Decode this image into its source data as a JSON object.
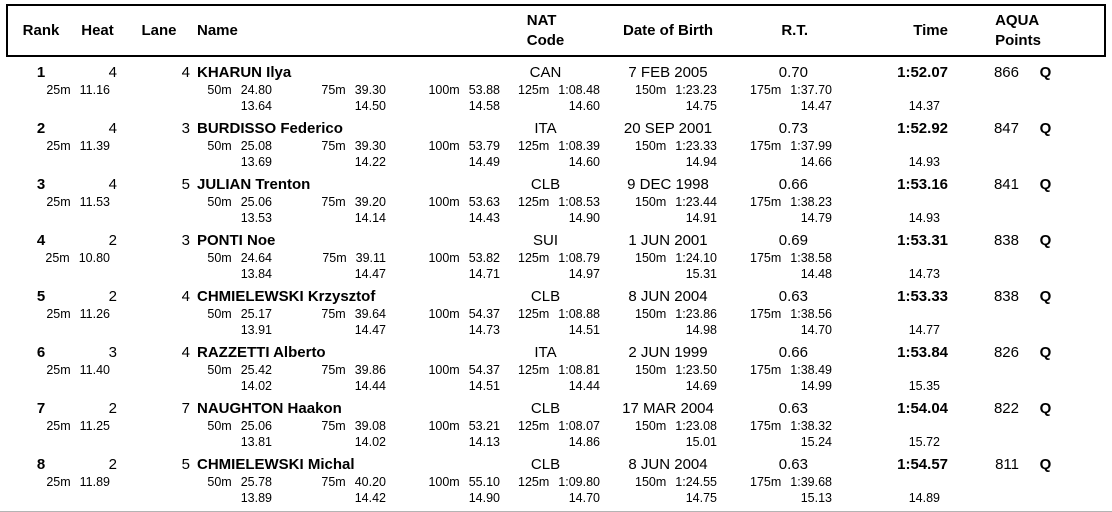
{
  "table": {
    "columns": {
      "rank": "Rank",
      "heat": "Heat",
      "lane": "Lane",
      "name": "Name",
      "nat_line1": "NAT",
      "nat_line2": "Code",
      "dob": "Date of Birth",
      "rt": "R.T.",
      "time": "Time",
      "points_line1": "AQUA",
      "points_line2": "Points"
    },
    "results": [
      {
        "rank": "1",
        "heat": "4",
        "lane": "4",
        "name": "KHARUN Ilya",
        "nat": "CAN",
        "dob": "7 FEB 2005",
        "rt": "0.70",
        "time": "1:52.07",
        "points": "866",
        "qualification": "Q",
        "splits": [
          {
            "dist": "25m",
            "time": "11.16"
          },
          {
            "dist": "50m",
            "time": "24.80",
            "lap": "13.64"
          },
          {
            "dist": "75m",
            "time": "39.30",
            "lap": "14.50"
          },
          {
            "dist": "100m",
            "time": "53.88",
            "lap": "14.58"
          },
          {
            "dist": "125m",
            "time": "1:08.48",
            "lap": "14.60"
          },
          {
            "dist": "150m",
            "time": "1:23.23",
            "lap": "14.75"
          },
          {
            "dist": "175m",
            "time": "1:37.70",
            "lap": "14.47"
          }
        ],
        "final_lap": "14.37"
      },
      {
        "rank": "2",
        "heat": "4",
        "lane": "3",
        "name": "BURDISSO Federico",
        "nat": "ITA",
        "dob": "20 SEP 2001",
        "rt": "0.73",
        "time": "1:52.92",
        "points": "847",
        "qualification": "Q",
        "splits": [
          {
            "dist": "25m",
            "time": "11.39"
          },
          {
            "dist": "50m",
            "time": "25.08",
            "lap": "13.69"
          },
          {
            "dist": "75m",
            "time": "39.30",
            "lap": "14.22"
          },
          {
            "dist": "100m",
            "time": "53.79",
            "lap": "14.49"
          },
          {
            "dist": "125m",
            "time": "1:08.39",
            "lap": "14.60"
          },
          {
            "dist": "150m",
            "time": "1:23.33",
            "lap": "14.94"
          },
          {
            "dist": "175m",
            "time": "1:37.99",
            "lap": "14.66"
          }
        ],
        "final_lap": "14.93"
      },
      {
        "rank": "3",
        "heat": "4",
        "lane": "5",
        "name": "JULIAN Trenton",
        "nat": "CLB",
        "dob": "9 DEC 1998",
        "rt": "0.66",
        "time": "1:53.16",
        "points": "841",
        "qualification": "Q",
        "splits": [
          {
            "dist": "25m",
            "time": "11.53"
          },
          {
            "dist": "50m",
            "time": "25.06",
            "lap": "13.53"
          },
          {
            "dist": "75m",
            "time": "39.20",
            "lap": "14.14"
          },
          {
            "dist": "100m",
            "time": "53.63",
            "lap": "14.43"
          },
          {
            "dist": "125m",
            "time": "1:08.53",
            "lap": "14.90"
          },
          {
            "dist": "150m",
            "time": "1:23.44",
            "lap": "14.91"
          },
          {
            "dist": "175m",
            "time": "1:38.23",
            "lap": "14.79"
          }
        ],
        "final_lap": "14.93"
      },
      {
        "rank": "4",
        "heat": "2",
        "lane": "3",
        "name": "PONTI Noe",
        "nat": "SUI",
        "dob": "1 JUN 2001",
        "rt": "0.69",
        "time": "1:53.31",
        "points": "838",
        "qualification": "Q",
        "splits": [
          {
            "dist": "25m",
            "time": "10.80"
          },
          {
            "dist": "50m",
            "time": "24.64",
            "lap": "13.84"
          },
          {
            "dist": "75m",
            "time": "39.11",
            "lap": "14.47"
          },
          {
            "dist": "100m",
            "time": "53.82",
            "lap": "14.71"
          },
          {
            "dist": "125m",
            "time": "1:08.79",
            "lap": "14.97"
          },
          {
            "dist": "150m",
            "time": "1:24.10",
            "lap": "15.31"
          },
          {
            "dist": "175m",
            "time": "1:38.58",
            "lap": "14.48"
          }
        ],
        "final_lap": "14.73"
      },
      {
        "rank": "5",
        "heat": "2",
        "lane": "4",
        "name": "CHMIELEWSKI Krzysztof",
        "nat": "CLB",
        "dob": "8 JUN 2004",
        "rt": "0.63",
        "time": "1:53.33",
        "points": "838",
        "qualification": "Q",
        "splits": [
          {
            "dist": "25m",
            "time": "11.26"
          },
          {
            "dist": "50m",
            "time": "25.17",
            "lap": "13.91"
          },
          {
            "dist": "75m",
            "time": "39.64",
            "lap": "14.47"
          },
          {
            "dist": "100m",
            "time": "54.37",
            "lap": "14.73"
          },
          {
            "dist": "125m",
            "time": "1:08.88",
            "lap": "14.51"
          },
          {
            "dist": "150m",
            "time": "1:23.86",
            "lap": "14.98"
          },
          {
            "dist": "175m",
            "time": "1:38.56",
            "lap": "14.70"
          }
        ],
        "final_lap": "14.77"
      },
      {
        "rank": "6",
        "heat": "3",
        "lane": "4",
        "name": "RAZZETTI Alberto",
        "nat": "ITA",
        "dob": "2 JUN 1999",
        "rt": "0.66",
        "time": "1:53.84",
        "points": "826",
        "qualification": "Q",
        "splits": [
          {
            "dist": "25m",
            "time": "11.40"
          },
          {
            "dist": "50m",
            "time": "25.42",
            "lap": "14.02"
          },
          {
            "dist": "75m",
            "time": "39.86",
            "lap": "14.44"
          },
          {
            "dist": "100m",
            "time": "54.37",
            "lap": "14.51"
          },
          {
            "dist": "125m",
            "time": "1:08.81",
            "lap": "14.44"
          },
          {
            "dist": "150m",
            "time": "1:23.50",
            "lap": "14.69"
          },
          {
            "dist": "175m",
            "time": "1:38.49",
            "lap": "14.99"
          }
        ],
        "final_lap": "15.35"
      },
      {
        "rank": "7",
        "heat": "2",
        "lane": "7",
        "name": "NAUGHTON Haakon",
        "nat": "CLB",
        "dob": "17 MAR 2004",
        "rt": "0.63",
        "time": "1:54.04",
        "points": "822",
        "qualification": "Q",
        "splits": [
          {
            "dist": "25m",
            "time": "11.25"
          },
          {
            "dist": "50m",
            "time": "25.06",
            "lap": "13.81"
          },
          {
            "dist": "75m",
            "time": "39.08",
            "lap": "14.02"
          },
          {
            "dist": "100m",
            "time": "53.21",
            "lap": "14.13"
          },
          {
            "dist": "125m",
            "time": "1:08.07",
            "lap": "14.86"
          },
          {
            "dist": "150m",
            "time": "1:23.08",
            "lap": "15.01"
          },
          {
            "dist": "175m",
            "time": "1:38.32",
            "lap": "15.24"
          }
        ],
        "final_lap": "15.72"
      },
      {
        "rank": "8",
        "heat": "2",
        "lane": "5",
        "name": "CHMIELEWSKI Michal",
        "nat": "CLB",
        "dob": "8 JUN 2004",
        "rt": "0.63",
        "time": "1:54.57",
        "points": "811",
        "qualification": "Q",
        "splits": [
          {
            "dist": "25m",
            "time": "11.89"
          },
          {
            "dist": "50m",
            "time": "25.78",
            "lap": "13.89"
          },
          {
            "dist": "75m",
            "time": "40.20",
            "lap": "14.42"
          },
          {
            "dist": "100m",
            "time": "55.10",
            "lap": "14.90"
          },
          {
            "dist": "125m",
            "time": "1:09.80",
            "lap": "14.70"
          },
          {
            "dist": "150m",
            "time": "1:24.55",
            "lap": "14.75"
          },
          {
            "dist": "175m",
            "time": "1:39.68",
            "lap": "15.13"
          }
        ],
        "final_lap": "14.89"
      }
    ]
  }
}
